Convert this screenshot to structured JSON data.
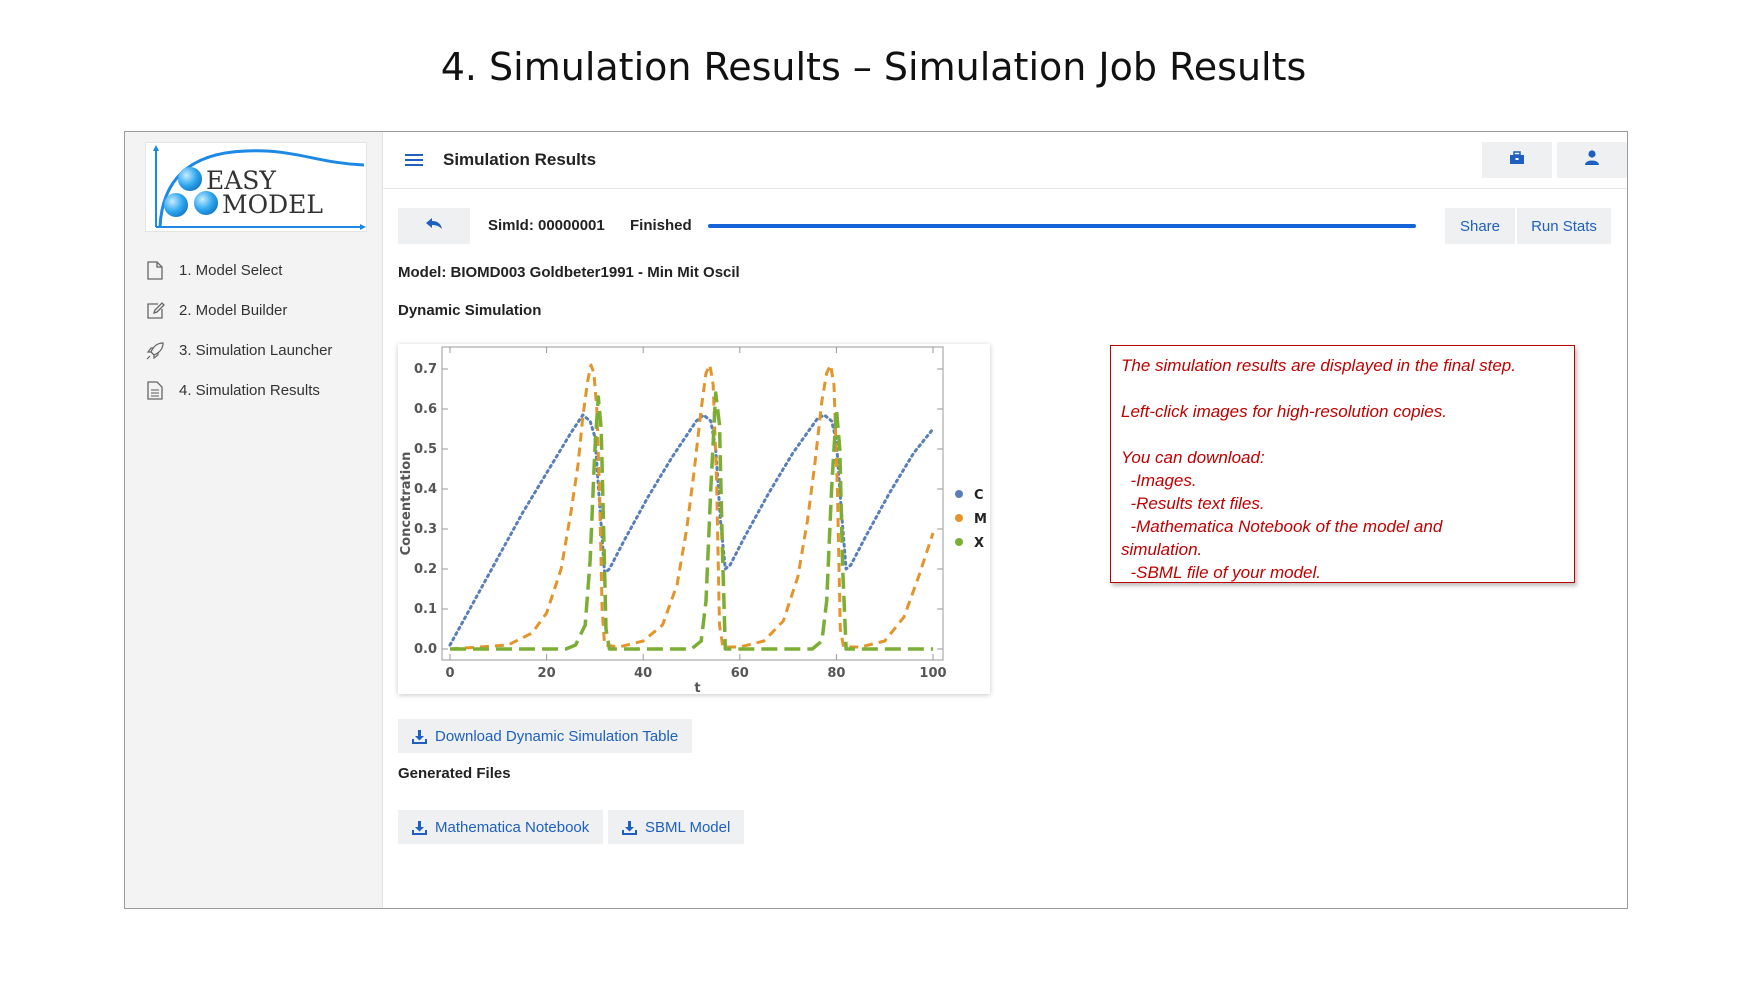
{
  "slide": {
    "title": "4. Simulation Results – Simulation Job Results"
  },
  "logo": {
    "line1": "EASY",
    "line2": "MODEL"
  },
  "sidebar": {
    "items": [
      {
        "label": "1. Model Select",
        "icon": "file-icon"
      },
      {
        "label": "2. Model Builder",
        "icon": "edit-icon"
      },
      {
        "label": "3. Simulation Launcher",
        "icon": "rocket-icon"
      },
      {
        "label": "4. Simulation Results",
        "icon": "document-icon"
      }
    ]
  },
  "header": {
    "title": "Simulation Results",
    "icons": [
      "toolbox-icon",
      "user-icon"
    ]
  },
  "status": {
    "sim_id": "SimId: 00000001",
    "state": "Finished",
    "progress": 1.0,
    "share_label": "Share",
    "run_stats_label": "Run Stats"
  },
  "model": {
    "name": "Model: BIOMD003 Goldbeter1991 - Min Mit Oscil"
  },
  "sections": {
    "dynamic": "Dynamic Simulation",
    "generated": "Generated Files"
  },
  "buttons": {
    "download_table": "Download Dynamic Simulation Table",
    "notebook": "Mathematica Notebook",
    "sbml": "SBML Model"
  },
  "note": {
    "line1": "The simulation results are displayed in the final step.",
    "line2": "Left-click images for high-resolution copies.",
    "line3": "You can download:",
    "line4": "  -Images.",
    "line5": "  -Results text files.",
    "line6": "  -Mathematica Notebook of the model and",
    "line7": "simulation.",
    "line8": "  -SBML file of your model."
  },
  "colors": {
    "accent": "#1565d8",
    "note_red": "#c00000",
    "C": "#5a7fb8",
    "M": "#e3952b",
    "X": "#7cae35"
  },
  "chart_data": {
    "type": "line",
    "xlabel": "t",
    "ylabel": "Concentration",
    "xlim": [
      0,
      100
    ],
    "ylim": [
      0,
      0.72
    ],
    "xticks": [
      0,
      20,
      40,
      60,
      80,
      100
    ],
    "yticks": [
      0.0,
      0.1,
      0.2,
      0.3,
      0.4,
      0.5,
      0.6,
      0.7
    ],
    "legend_position": "right",
    "series": [
      {
        "name": "C",
        "style": "dotted",
        "points": [
          [
            0,
            0.01
          ],
          [
            5,
            0.12
          ],
          [
            10,
            0.23
          ],
          [
            15,
            0.34
          ],
          [
            20,
            0.44
          ],
          [
            25,
            0.54
          ],
          [
            27.5,
            0.585
          ],
          [
            29,
            0.57
          ],
          [
            30,
            0.53
          ],
          [
            31,
            0.36
          ],
          [
            32,
            0.19
          ],
          [
            33,
            0.2
          ],
          [
            36,
            0.27
          ],
          [
            41,
            0.38
          ],
          [
            46,
            0.48
          ],
          [
            51,
            0.57
          ],
          [
            52.5,
            0.585
          ],
          [
            54,
            0.57
          ],
          [
            55,
            0.5
          ],
          [
            56,
            0.32
          ],
          [
            57,
            0.2
          ],
          [
            58,
            0.21
          ],
          [
            61,
            0.28
          ],
          [
            66,
            0.39
          ],
          [
            71,
            0.49
          ],
          [
            76,
            0.575
          ],
          [
            77.5,
            0.585
          ],
          [
            79,
            0.57
          ],
          [
            80,
            0.52
          ],
          [
            81,
            0.35
          ],
          [
            82,
            0.2
          ],
          [
            83,
            0.21
          ],
          [
            86,
            0.28
          ],
          [
            91,
            0.39
          ],
          [
            96,
            0.49
          ],
          [
            100,
            0.55
          ]
        ]
      },
      {
        "name": "M",
        "style": "dashed",
        "points": [
          [
            0,
            0.0
          ],
          [
            6,
            0.005
          ],
          [
            12,
            0.01
          ],
          [
            17,
            0.04
          ],
          [
            20,
            0.09
          ],
          [
            23,
            0.2
          ],
          [
            25,
            0.34
          ],
          [
            26.5,
            0.46
          ],
          [
            27.5,
            0.58
          ],
          [
            28.5,
            0.67
          ],
          [
            29.2,
            0.71
          ],
          [
            29.8,
            0.69
          ],
          [
            30.4,
            0.6
          ],
          [
            31,
            0.38
          ],
          [
            31.5,
            0.1
          ],
          [
            32,
            0.01
          ],
          [
            35,
            0.005
          ],
          [
            40,
            0.02
          ],
          [
            44,
            0.06
          ],
          [
            47,
            0.16
          ],
          [
            49,
            0.3
          ],
          [
            50.5,
            0.44
          ],
          [
            52,
            0.6
          ],
          [
            53,
            0.69
          ],
          [
            53.8,
            0.71
          ],
          [
            54.5,
            0.66
          ],
          [
            55.2,
            0.42
          ],
          [
            55.8,
            0.06
          ],
          [
            56.5,
            0.005
          ],
          [
            60,
            0.005
          ],
          [
            65,
            0.02
          ],
          [
            69,
            0.07
          ],
          [
            72,
            0.18
          ],
          [
            74,
            0.32
          ],
          [
            75.5,
            0.46
          ],
          [
            77,
            0.62
          ],
          [
            78,
            0.69
          ],
          [
            78.8,
            0.71
          ],
          [
            79.5,
            0.66
          ],
          [
            80.2,
            0.4
          ],
          [
            80.8,
            0.05
          ],
          [
            81.5,
            0.005
          ],
          [
            85,
            0.005
          ],
          [
            90,
            0.02
          ],
          [
            94,
            0.08
          ],
          [
            97,
            0.18
          ],
          [
            100,
            0.29
          ]
        ]
      },
      {
        "name": "X",
        "style": "longdash",
        "points": [
          [
            0,
            0.0
          ],
          [
            24,
            0.0
          ],
          [
            26,
            0.01
          ],
          [
            28,
            0.06
          ],
          [
            29,
            0.22
          ],
          [
            30,
            0.5
          ],
          [
            30.7,
            0.63
          ],
          [
            31.3,
            0.55
          ],
          [
            31.8,
            0.3
          ],
          [
            32.3,
            0.05
          ],
          [
            33,
            0.0
          ],
          [
            50,
            0.0
          ],
          [
            52,
            0.02
          ],
          [
            53,
            0.12
          ],
          [
            54,
            0.4
          ],
          [
            55,
            0.64
          ],
          [
            55.8,
            0.56
          ],
          [
            56.4,
            0.25
          ],
          [
            57,
            0.0
          ],
          [
            75,
            0.0
          ],
          [
            77,
            0.02
          ],
          [
            78,
            0.12
          ],
          [
            79,
            0.4
          ],
          [
            80,
            0.6
          ],
          [
            80.7,
            0.5
          ],
          [
            81.3,
            0.2
          ],
          [
            82,
            0.0
          ],
          [
            100,
            0.0
          ]
        ]
      }
    ]
  }
}
